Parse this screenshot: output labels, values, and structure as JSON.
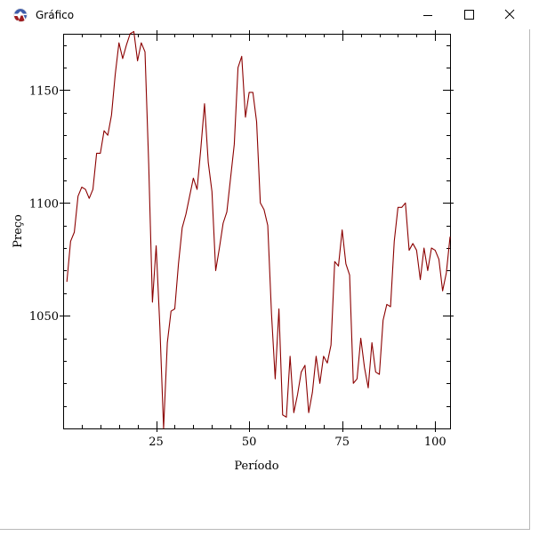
{
  "window": {
    "title": "Gráfico"
  },
  "icons": {
    "app": "racket-logo-icon",
    "minimize": "minimize-icon",
    "maximize": "maximize-icon",
    "close": "close-icon"
  },
  "colors": {
    "series": "#8b0000",
    "axis": "#000000"
  },
  "chart_data": {
    "type": "line",
    "title": "",
    "xlabel": "Período",
    "ylabel": "Preço",
    "xlim": [
      0,
      104
    ],
    "ylim": [
      1000,
      1175
    ],
    "x_ticks": [
      25,
      50,
      75,
      100
    ],
    "y_ticks": [
      1050,
      1100,
      1150
    ],
    "grid": false,
    "series": [
      {
        "values": [
          1065,
          1083,
          1087,
          1103,
          1107,
          1106,
          1102,
          1106,
          1122,
          1122,
          1132,
          1130,
          1139,
          1157,
          1171,
          1164,
          1170,
          1175,
          1176,
          1163,
          1171,
          1167,
          1117,
          1056,
          1081,
          1045,
          1000,
          1038,
          1052,
          1053,
          1073,
          1089,
          1095,
          1103,
          1111,
          1106,
          1124,
          1144,
          1118,
          1105,
          1070,
          1080,
          1091,
          1096,
          1111,
          1126,
          1160,
          1165,
          1138,
          1149,
          1149,
          1136,
          1100,
          1097,
          1090,
          1051,
          1022,
          1053,
          1006,
          1005,
          1032,
          1007,
          1015,
          1025,
          1028,
          1007,
          1016,
          1032,
          1020,
          1032,
          1029,
          1037,
          1074,
          1072,
          1088,
          1073,
          1068,
          1020,
          1022,
          1040,
          1027,
          1018,
          1038,
          1025,
          1024,
          1048,
          1055,
          1054,
          1083,
          1098,
          1098,
          1100,
          1079,
          1082,
          1079,
          1066,
          1080,
          1070,
          1080,
          1079,
          1075,
          1061,
          1069,
          1085
        ]
      }
    ]
  }
}
